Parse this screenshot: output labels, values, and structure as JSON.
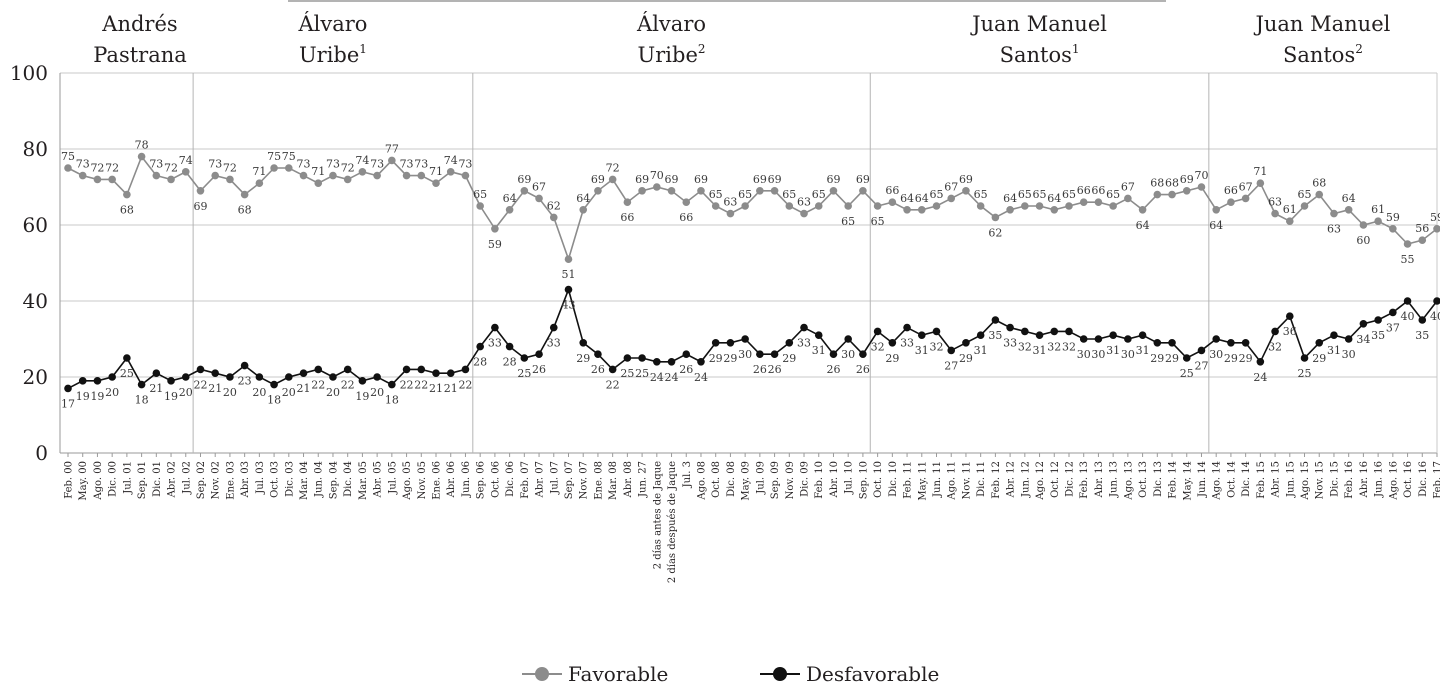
{
  "chart_data": {
    "type": "line",
    "title": "",
    "xlabel": "",
    "ylabel": "",
    "ylim": [
      0,
      100
    ],
    "yticks": [
      0,
      20,
      40,
      60,
      80,
      100
    ],
    "grid": true,
    "legend_position": "bottom",
    "categories": [
      "Feb. 00",
      "May. 00",
      "Ago. 00",
      "Dic. 00",
      "Jul. 01",
      "Sep. 01",
      "Dic. 01",
      "Abr. 02",
      "Jul. 02",
      "Sep. 02",
      "Nov. 02",
      "Ene. 03",
      "Abr. 03",
      "Jul. 03",
      "Oct. 03",
      "Dic. 03",
      "Mar. 04",
      "Jun. 04",
      "Sep. 04",
      "Dic. 04",
      "Mar. 05",
      "Abr. 05",
      "Jul. 05",
      "Ago. 05",
      "Nov. 05",
      "Ene. 06",
      "Abr. 06",
      "Jun. 06",
      "Sep. 06",
      "Oct. 06",
      "Dic. 06",
      "Feb. 07",
      "Abr. 07",
      "Jul. 07",
      "Sep. 07",
      "Nov. 07",
      "Ene. 08",
      "Mar. 08",
      "Abr. 08",
      "Jun. 27",
      "2 días antes de Jaque",
      "2 días después de Jaque",
      "Jul. 3",
      "Ago. 08",
      "Oct. 08",
      "Dic. 08",
      "May. 09",
      "Jul. 09",
      "Sep. 09",
      "Nov. 09",
      "Dic. 09",
      "Feb. 10",
      "Abr. 10",
      "Jul. 10",
      "Sep. 10",
      "Oct. 10",
      "Dic. 10",
      "Feb. 11",
      "May. 11",
      "Jun. 11",
      "Ago. 11",
      "Nov. 11",
      "Dic. 11",
      "Feb. 12",
      "Abr. 12",
      "Jun. 12",
      "Ago. 12",
      "Oct. 12",
      "Dic. 12",
      "Feb. 13",
      "Abr. 13",
      "Jun. 13",
      "Ago. 13",
      "Oct. 13",
      "Dic. 13",
      "Feb. 14",
      "May. 14",
      "Jun. 14",
      "Ago. 14",
      "Oct. 14",
      "Dic. 14",
      "Feb. 15",
      "Abr. 15",
      "Jun. 15",
      "Ago. 15",
      "Nov. 15",
      "Dic. 15",
      "Feb. 16",
      "Abr. 16",
      "Jun. 16",
      "Ago. 16",
      "Oct. 16",
      "Dic. 16",
      "Feb. 17"
    ],
    "series": [
      {
        "name": "Favorable",
        "color": "#8c8c8c",
        "values": [
          75,
          73,
          72,
          72,
          68,
          78,
          73,
          72,
          74,
          69,
          73,
          72,
          68,
          71,
          75,
          75,
          73,
          71,
          73,
          72,
          74,
          73,
          77,
          73,
          73,
          71,
          74,
          73,
          65,
          59,
          64,
          69,
          67,
          62,
          51,
          64,
          69,
          72,
          66,
          69,
          70,
          69,
          66,
          69,
          65,
          63,
          65,
          69,
          69,
          65,
          63,
          65,
          69,
          65,
          69,
          65,
          66,
          64,
          64,
          65,
          67,
          69,
          65,
          62,
          64,
          65,
          65,
          64,
          65,
          66,
          66,
          65,
          67,
          64,
          68,
          68,
          69,
          70,
          64,
          66,
          67,
          71,
          63,
          61,
          65,
          68,
          63,
          64,
          60,
          61,
          59,
          55,
          56,
          59
        ]
      },
      {
        "name": "Desfavorable",
        "color": "#111111",
        "values": [
          17,
          19,
          19,
          20,
          25,
          18,
          21,
          19,
          20,
          22,
          21,
          20,
          23,
          20,
          18,
          20,
          21,
          22,
          20,
          22,
          19,
          20,
          18,
          22,
          22,
          21,
          21,
          22,
          28,
          33,
          28,
          25,
          26,
          33,
          43,
          29,
          26,
          22,
          25,
          25,
          24,
          24,
          26,
          24,
          29,
          29,
          30,
          26,
          26,
          29,
          33,
          31,
          26,
          30,
          26,
          32,
          29,
          33,
          31,
          32,
          27,
          29,
          31,
          35,
          33,
          32,
          31,
          32,
          32,
          30,
          30,
          31,
          30,
          31,
          29,
          29,
          25,
          27,
          30,
          29,
          29,
          24,
          32,
          36,
          25,
          29,
          31,
          30,
          34,
          35,
          37,
          40,
          35,
          40
        ]
      }
    ],
    "periods": [
      {
        "name_line1": "Andrés",
        "name_line2": "Pastrana",
        "sup": ""
      },
      {
        "name_line1": "Álvaro",
        "name_line2": "Uribe",
        "sup": "1"
      },
      {
        "name_line1": "Álvaro",
        "name_line2": "Uribe",
        "sup": "2"
      },
      {
        "name_line1": "Juan Manuel",
        "name_line2": "Santos",
        "sup": "1"
      },
      {
        "name_line1": "Juan Manuel",
        "name_line2": "Santos",
        "sup": "2"
      }
    ]
  }
}
